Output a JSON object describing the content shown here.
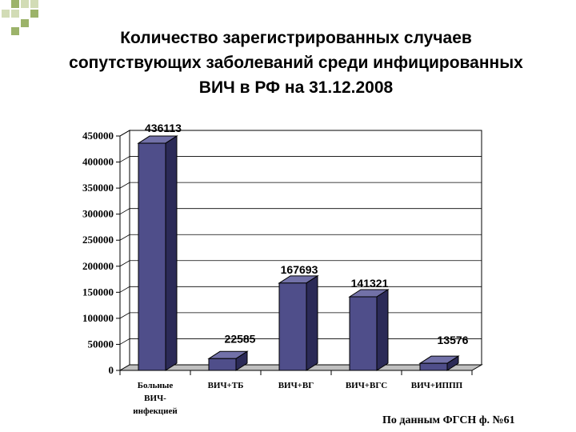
{
  "title_lines": [
    "Количество зарегистрированных случаев",
    "сопутствующих заболеваний среди инфицированных",
    "ВИЧ в РФ на 31.12.2008"
  ],
  "source_note": "По данным ФГСН ф. №61",
  "colors": {
    "bar_front": "#4f4e8a",
    "bar_side": "#2b2a57",
    "bar_top": "#7271a8",
    "deco_green": "#9cb36a",
    "deco_light": "#d2dcb6"
  },
  "chart_data": {
    "type": "bar",
    "title": "Количество зарегистрированных случаев сопутствующих заболеваний среди инфицированных ВИЧ в РФ на 31.12.2008",
    "categories": [
      [
        "Больные",
        "ВИЧ-",
        "инфекцией"
      ],
      [
        "ВИЧ+ТБ"
      ],
      [
        "ВИЧ+ВГ"
      ],
      [
        "ВИЧ+ВГС"
      ],
      [
        "ВИЧ+ИППП"
      ]
    ],
    "values": [
      436113,
      22585,
      167693,
      141321,
      13576
    ],
    "ylim": [
      0,
      450000
    ],
    "yticks": [
      "0",
      "50000",
      "100000",
      "150000",
      "200000",
      "250000",
      "300000",
      "350000",
      "400000",
      "450000"
    ],
    "grid": true,
    "style": "3d-bar"
  }
}
